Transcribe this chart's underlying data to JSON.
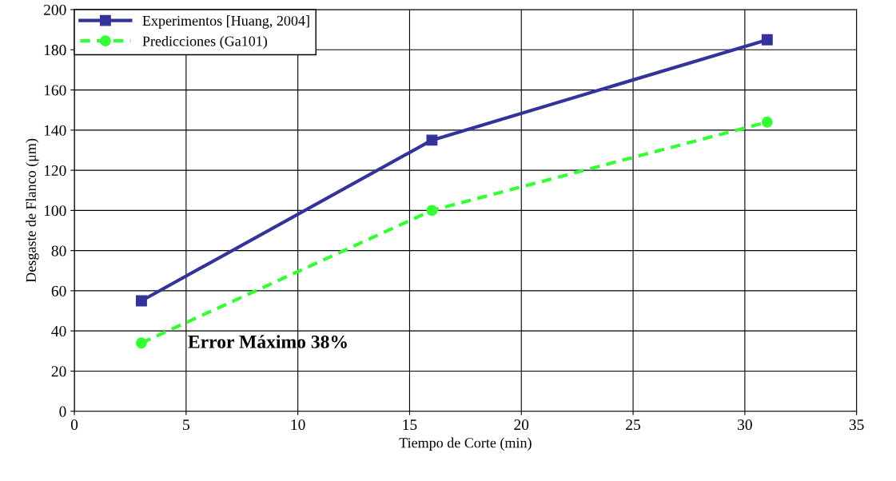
{
  "chart_data": {
    "type": "line",
    "xlabel": "Tiempo de Corte (min)",
    "ylabel": "Desgaste de Flanco (μm)",
    "series": [
      {
        "name": "Experimentos [Huang, 2004]",
        "color": "#333399",
        "x": [
          3,
          16,
          31
        ],
        "values": [
          55,
          135,
          185
        ],
        "marker": "square",
        "line_style": "solid"
      },
      {
        "name": "Predicciones (Ga101)",
        "color": "#33ff33",
        "x": [
          3,
          16,
          31
        ],
        "values": [
          34,
          100,
          144
        ],
        "marker": "circle",
        "line_style": "dashed"
      }
    ],
    "xlim": [
      0,
      35
    ],
    "xticks": [
      0,
      5,
      10,
      15,
      20,
      25,
      30,
      35
    ],
    "ylim": [
      0,
      200
    ],
    "yticks": [
      0,
      20,
      40,
      60,
      80,
      100,
      120,
      140,
      160,
      180,
      200
    ],
    "grid": true,
    "legend": "top left",
    "annotations": [
      "Error Máximo 38%"
    ]
  }
}
